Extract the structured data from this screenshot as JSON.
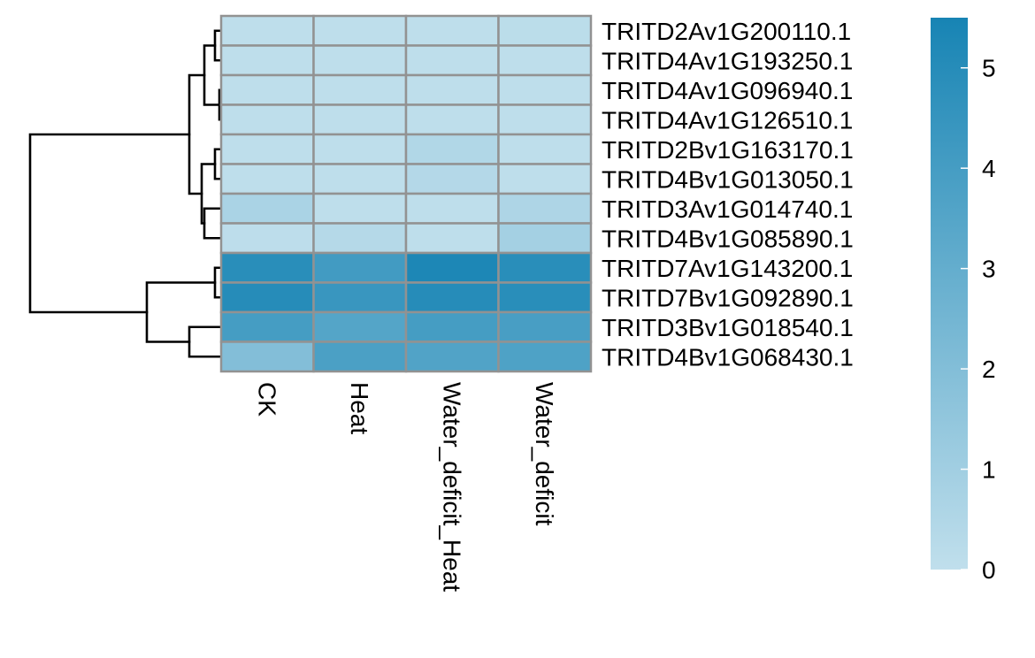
{
  "chart_data": {
    "type": "heatmap",
    "title": "",
    "columns": [
      "CK",
      "Heat",
      "Water_deficit_Heat",
      "Water_deficit"
    ],
    "rows": [
      "TRITD2Av1G200110.1",
      "TRITD4Av1G193250.1",
      "TRITD4Av1G096940.1",
      "TRITD4Av1G126510.1",
      "TRITD2Bv1G163170.1",
      "TRITD4Bv1G013050.1",
      "TRITD3Av1G014740.1",
      "TRITD4Bv1G085890.1",
      "TRITD7Av1G143200.1",
      "TRITD7Bv1G092890.1",
      "TRITD3Bv1G018540.1",
      "TRITD4Bv1G068430.1"
    ],
    "values": [
      [
        0.05,
        0.05,
        0.05,
        0.15
      ],
      [
        0.05,
        0.05,
        0.05,
        0.05
      ],
      [
        0.05,
        0.05,
        0.05,
        0.05
      ],
      [
        0.05,
        0.05,
        0.05,
        0.05
      ],
      [
        0.05,
        0.05,
        0.5,
        0.05
      ],
      [
        0.05,
        0.05,
        0.4,
        0.05
      ],
      [
        0.7,
        0.05,
        0.05,
        0.6
      ],
      [
        0.1,
        0.35,
        0.05,
        0.9
      ],
      [
        4.9,
        4.1,
        5.3,
        4.9
      ],
      [
        5.0,
        4.4,
        5.0,
        4.9
      ],
      [
        4.0,
        3.5,
        4.0,
        3.9
      ],
      [
        2.0,
        3.8,
        3.6,
        3.7
      ]
    ],
    "colorbar": {
      "min": 0,
      "max": 5.5,
      "ticks": [
        "0",
        "1",
        "2",
        "3",
        "4",
        "5"
      ],
      "color_low": "#c0dfec",
      "color_high": "#1784b4"
    },
    "row_dendrogram": true,
    "column_dendrogram": false
  }
}
